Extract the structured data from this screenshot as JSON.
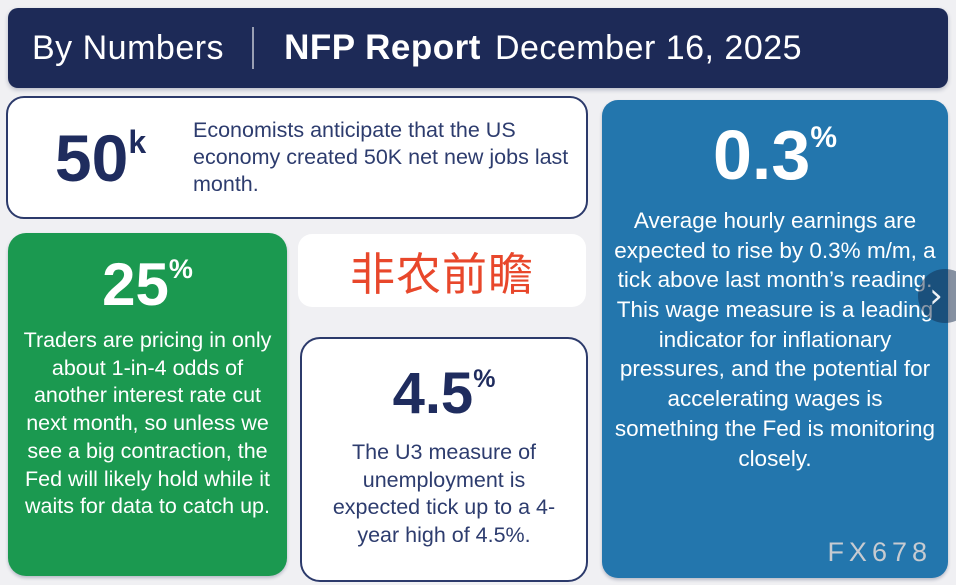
{
  "header": {
    "brand": "By Numbers",
    "title": "NFP Report",
    "date": "December 16, 2025"
  },
  "cards": {
    "jobs": {
      "stat": "50",
      "stat_suffix": "k",
      "text": "Economists anticipate that the US economy created 50K net new jobs last month."
    },
    "rate_odds": {
      "stat": "25",
      "stat_suffix": "%",
      "text": "Traders are pricing in only about 1-in-4 odds of another interest rate cut next month, so unless we see a big contraction, the Fed will likely hold while it waits for data to catch up."
    },
    "preview_label": {
      "text": "非农前瞻"
    },
    "unemployment": {
      "stat": "4.5",
      "stat_suffix": "%",
      "text": "The U3 measure of unemployment is expected tick up to a 4-year high of 4.5%."
    },
    "earnings": {
      "stat": "0.3",
      "stat_suffix": "%",
      "text": "Average hourly earnings are expected to rise by 0.3% m/m, a tick above last month’s reading. This wage measure is a leading indicator for inflationary pressures, and the potential for accelerating wages is something the Fed is monitoring closely."
    }
  },
  "watermark": "FX678",
  "carousel": {
    "next_icon": "›"
  },
  "colors": {
    "header_navy": "#1d2a57",
    "stat_navy": "#1f2c5e",
    "body_navy": "#2d3c6e",
    "green": "#1b9950",
    "blue": "#2376ad",
    "preview_red": "#e8472b",
    "background": "#f0f0f3",
    "watermark_gray": "#c7cbd1"
  }
}
